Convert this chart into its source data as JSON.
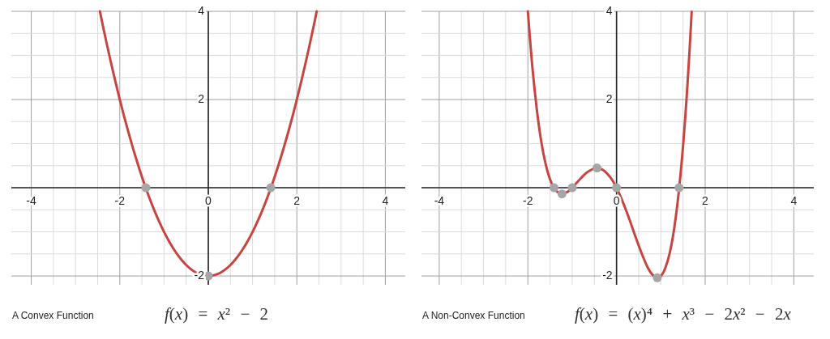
{
  "chart_data": [
    {
      "type": "line",
      "xlim": [
        -4.45,
        4.45
      ],
      "ylim": [
        -2.2,
        4
      ],
      "grid": true,
      "xticks": [
        -4,
        {
          "value": -3.5,
          "label": null
        },
        {
          "value": -3,
          "label": null
        },
        {
          "value": -2.5,
          "label": null
        },
        -2,
        {
          "value": -1.5,
          "label": null
        },
        {
          "value": -1,
          "label": null
        },
        {
          "value": -0.5,
          "label": null
        },
        0,
        {
          "value": 0.5,
          "label": null
        },
        {
          "value": 1,
          "label": null
        },
        {
          "value": 1.5,
          "label": null
        },
        2,
        {
          "value": 2.5,
          "label": null
        },
        {
          "value": 3,
          "label": null
        },
        {
          "value": 3.5,
          "label": null
        },
        4
      ],
      "yticks": [
        -2,
        {
          "value": -1.5,
          "label": null
        },
        {
          "value": -1,
          "label": null
        },
        {
          "value": -0.5,
          "label": null
        },
        {
          "value": 0,
          "label": null
        },
        {
          "value": 0.5,
          "label": null
        },
        {
          "value": 1,
          "label": null
        },
        {
          "value": 1.5,
          "label": null
        },
        2,
        {
          "value": 2.5,
          "label": null
        },
        {
          "value": 3,
          "label": null
        },
        {
          "value": 3.5,
          "label": null
        },
        4
      ],
      "series": [
        {
          "color": "#c74440",
          "x": [
            -2.449,
            -2.4,
            -2.3,
            -2.2,
            -2.1,
            -2,
            -1.9,
            -1.8,
            -1.7,
            -1.6,
            -1.5,
            -1.4,
            -1.3,
            -1.2,
            -1.1,
            -1,
            -0.9,
            -0.8,
            -0.7,
            -0.6,
            -0.5,
            -0.4,
            -0.3,
            -0.2,
            -0.1,
            0,
            0.1,
            0.2,
            0.3,
            0.4,
            0.5,
            0.6,
            0.7,
            0.8,
            0.9,
            1,
            1.1,
            1.2,
            1.3,
            1.4,
            1.5,
            1.6,
            1.7,
            1.8,
            1.9,
            2,
            2.1,
            2.2,
            2.3,
            2.4,
            2.449
          ],
          "values": [
            4,
            3.76,
            3.29,
            2.84,
            2.41,
            2,
            1.61,
            1.24,
            0.89,
            0.56,
            0.25,
            -0.04,
            -0.31,
            -0.56,
            -0.79,
            -1,
            -1.19,
            -1.36,
            -1.51,
            -1.64,
            -1.75,
            -1.84,
            -1.91,
            -1.96,
            -1.99,
            -2,
            -1.99,
            -1.96,
            -1.91,
            -1.84,
            -1.75,
            -1.64,
            -1.51,
            -1.36,
            -1.19,
            -1,
            -0.79,
            -0.56,
            -0.31,
            -0.04,
            0.25,
            0.56,
            0.89,
            1.24,
            1.61,
            2,
            2.41,
            2.84,
            3.29,
            3.76,
            4
          ]
        },
        {
          "type": "scatter",
          "color": "#a6a6a6",
          "marker": "circle",
          "x": [
            -1.41,
            0,
            1.41
          ],
          "values": [
            0,
            -2,
            0
          ]
        }
      ],
      "annotations": [
        "A Convex Function",
        "f(x) = x² − 2"
      ]
    },
    {
      "type": "line",
      "xlim": [
        -4.4,
        4.45
      ],
      "ylim": [
        -2.2,
        4
      ],
      "grid": true,
      "xticks": [
        -4,
        {
          "value": -3.5,
          "label": null
        },
        {
          "value": -3,
          "label": null
        },
        {
          "value": -2.5,
          "label": null
        },
        -2,
        {
          "value": -1.5,
          "label": null
        },
        {
          "value": -1,
          "label": null
        },
        {
          "value": -0.5,
          "label": null
        },
        0,
        {
          "value": 0.5,
          "label": null
        },
        {
          "value": 1,
          "label": null
        },
        {
          "value": 1.5,
          "label": null
        },
        2,
        {
          "value": 2.5,
          "label": null
        },
        {
          "value": 3,
          "label": null
        },
        {
          "value": 3.5,
          "label": null
        },
        4
      ],
      "yticks": [
        -2,
        {
          "value": -1.5,
          "label": null
        },
        {
          "value": -1,
          "label": null
        },
        {
          "value": -0.5,
          "label": null
        },
        {
          "value": 0,
          "label": null
        },
        {
          "value": 0.5,
          "label": null
        },
        {
          "value": 1,
          "label": null
        },
        {
          "value": 1.5,
          "label": null
        },
        2,
        {
          "value": 2.5,
          "label": null
        },
        {
          "value": 3,
          "label": null
        },
        {
          "value": 3.5,
          "label": null
        },
        4
      ],
      "series": [
        {
          "color": "#c74440",
          "x": [
            -2,
            -1.95,
            -1.9,
            -1.85,
            -1.8,
            -1.7,
            -1.6,
            -1.5,
            -1.4,
            -1.3,
            -1.23,
            -1.2,
            -1.1,
            -1,
            -0.9,
            -0.8,
            -0.7,
            -0.6,
            -0.5,
            -0.44,
            -0.4,
            -0.3,
            -0.2,
            -0.1,
            0,
            0.1,
            0.2,
            0.3,
            0.4,
            0.5,
            0.6,
            0.7,
            0.8,
            0.9,
            0.92,
            1,
            1.1,
            1.2,
            1.3,
            1.4,
            1.5,
            1.55,
            1.6,
            1.65,
            1.695
          ],
          "values": [
            4,
            3.34,
            2.75,
            2.24,
            1.79,
            1.06,
            0.54,
            0.19,
            -0.02,
            -0.12,
            -0.14,
            -0.13,
            -0.09,
            0,
            0.11,
            0.22,
            0.32,
            0.39,
            0.44,
            0.45,
            0.44,
            0.4,
            0.31,
            0.18,
            0,
            -0.22,
            -0.47,
            -0.74,
            -1.03,
            -1.31,
            -1.57,
            -1.8,
            -1.96,
            -2.03,
            -2.04,
            -2,
            -1.82,
            -1.48,
            -0.93,
            -0.13,
            0.94,
            1.59,
            2.33,
            3.16,
            3.99
          ]
        },
        {
          "type": "scatter",
          "color": "#a6a6a6",
          "marker": "circle",
          "x": [
            -1.41,
            -1.23,
            -1,
            -0.44,
            0,
            0.92,
            1.41
          ],
          "values": [
            0,
            -0.14,
            0,
            0.45,
            0,
            -2.04,
            0
          ]
        }
      ],
      "annotations": [
        "A Non-Convex Function",
        "f(x) = (x)⁴ + x³ − 2x² − 2x"
      ]
    }
  ]
}
